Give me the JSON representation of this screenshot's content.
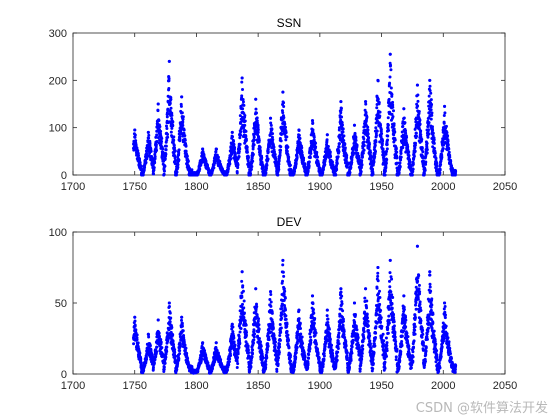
{
  "watermark": "CSDN @软件算法开发",
  "colors": {
    "marker": "#0000ff",
    "axis": "#262626",
    "background": "#ffffff"
  },
  "chart_data": [
    {
      "type": "scatter",
      "title": "SSN",
      "xlim": [
        1700,
        2050
      ],
      "ylim": [
        0,
        300
      ],
      "xticks": [
        1700,
        1750,
        1800,
        1850,
        1900,
        1950,
        2000,
        2050
      ],
      "yticks": [
        0,
        100,
        200,
        300
      ],
      "grid": false,
      "series": [
        {
          "x_range": [
            1749,
            2010
          ],
          "cycle_maxima": [
            [
              1750,
              95
            ],
            [
              1761,
              90
            ],
            [
              1769,
              150
            ],
            [
              1778,
              240
            ],
            [
              1788,
              165
            ],
            [
              1805,
              55
            ],
            [
              1816,
              55
            ],
            [
              1829,
              90
            ],
            [
              1837,
              205
            ],
            [
              1848,
              160
            ],
            [
              1860,
              120
            ],
            [
              1870,
              175
            ],
            [
              1883,
              95
            ],
            [
              1894,
              115
            ],
            [
              1906,
              85
            ],
            [
              1917,
              155
            ],
            [
              1928,
              105
            ],
            [
              1937,
              155
            ],
            [
              1947,
              200
            ],
            [
              1957,
              255
            ],
            [
              1968,
              140
            ],
            [
              1979,
              190
            ],
            [
              1989,
              200
            ],
            [
              2001,
              145
            ]
          ]
        }
      ]
    },
    {
      "type": "scatter",
      "title": "DEV",
      "xlim": [
        1700,
        2050
      ],
      "ylim": [
        0,
        100
      ],
      "xticks": [
        1700,
        1750,
        1800,
        1850,
        1900,
        1950,
        2000,
        2050
      ],
      "yticks": [
        0,
        50,
        100
      ],
      "grid": false,
      "series": [
        {
          "x_range": [
            1749,
            2010
          ],
          "cycle_maxima": [
            [
              1750,
              40
            ],
            [
              1761,
              28
            ],
            [
              1769,
              38
            ],
            [
              1778,
              50
            ],
            [
              1788,
              40
            ],
            [
              1805,
              22
            ],
            [
              1816,
              22
            ],
            [
              1829,
              35
            ],
            [
              1837,
              72
            ],
            [
              1848,
              60
            ],
            [
              1860,
              58
            ],
            [
              1870,
              80
            ],
            [
              1883,
              45
            ],
            [
              1894,
              55
            ],
            [
              1906,
              45
            ],
            [
              1917,
              60
            ],
            [
              1928,
              50
            ],
            [
              1937,
              60
            ],
            [
              1947,
              75
            ],
            [
              1957,
              80
            ],
            [
              1968,
              55
            ],
            [
              1979,
              90
            ],
            [
              1989,
              72
            ],
            [
              2001,
              50
            ]
          ]
        }
      ]
    }
  ]
}
